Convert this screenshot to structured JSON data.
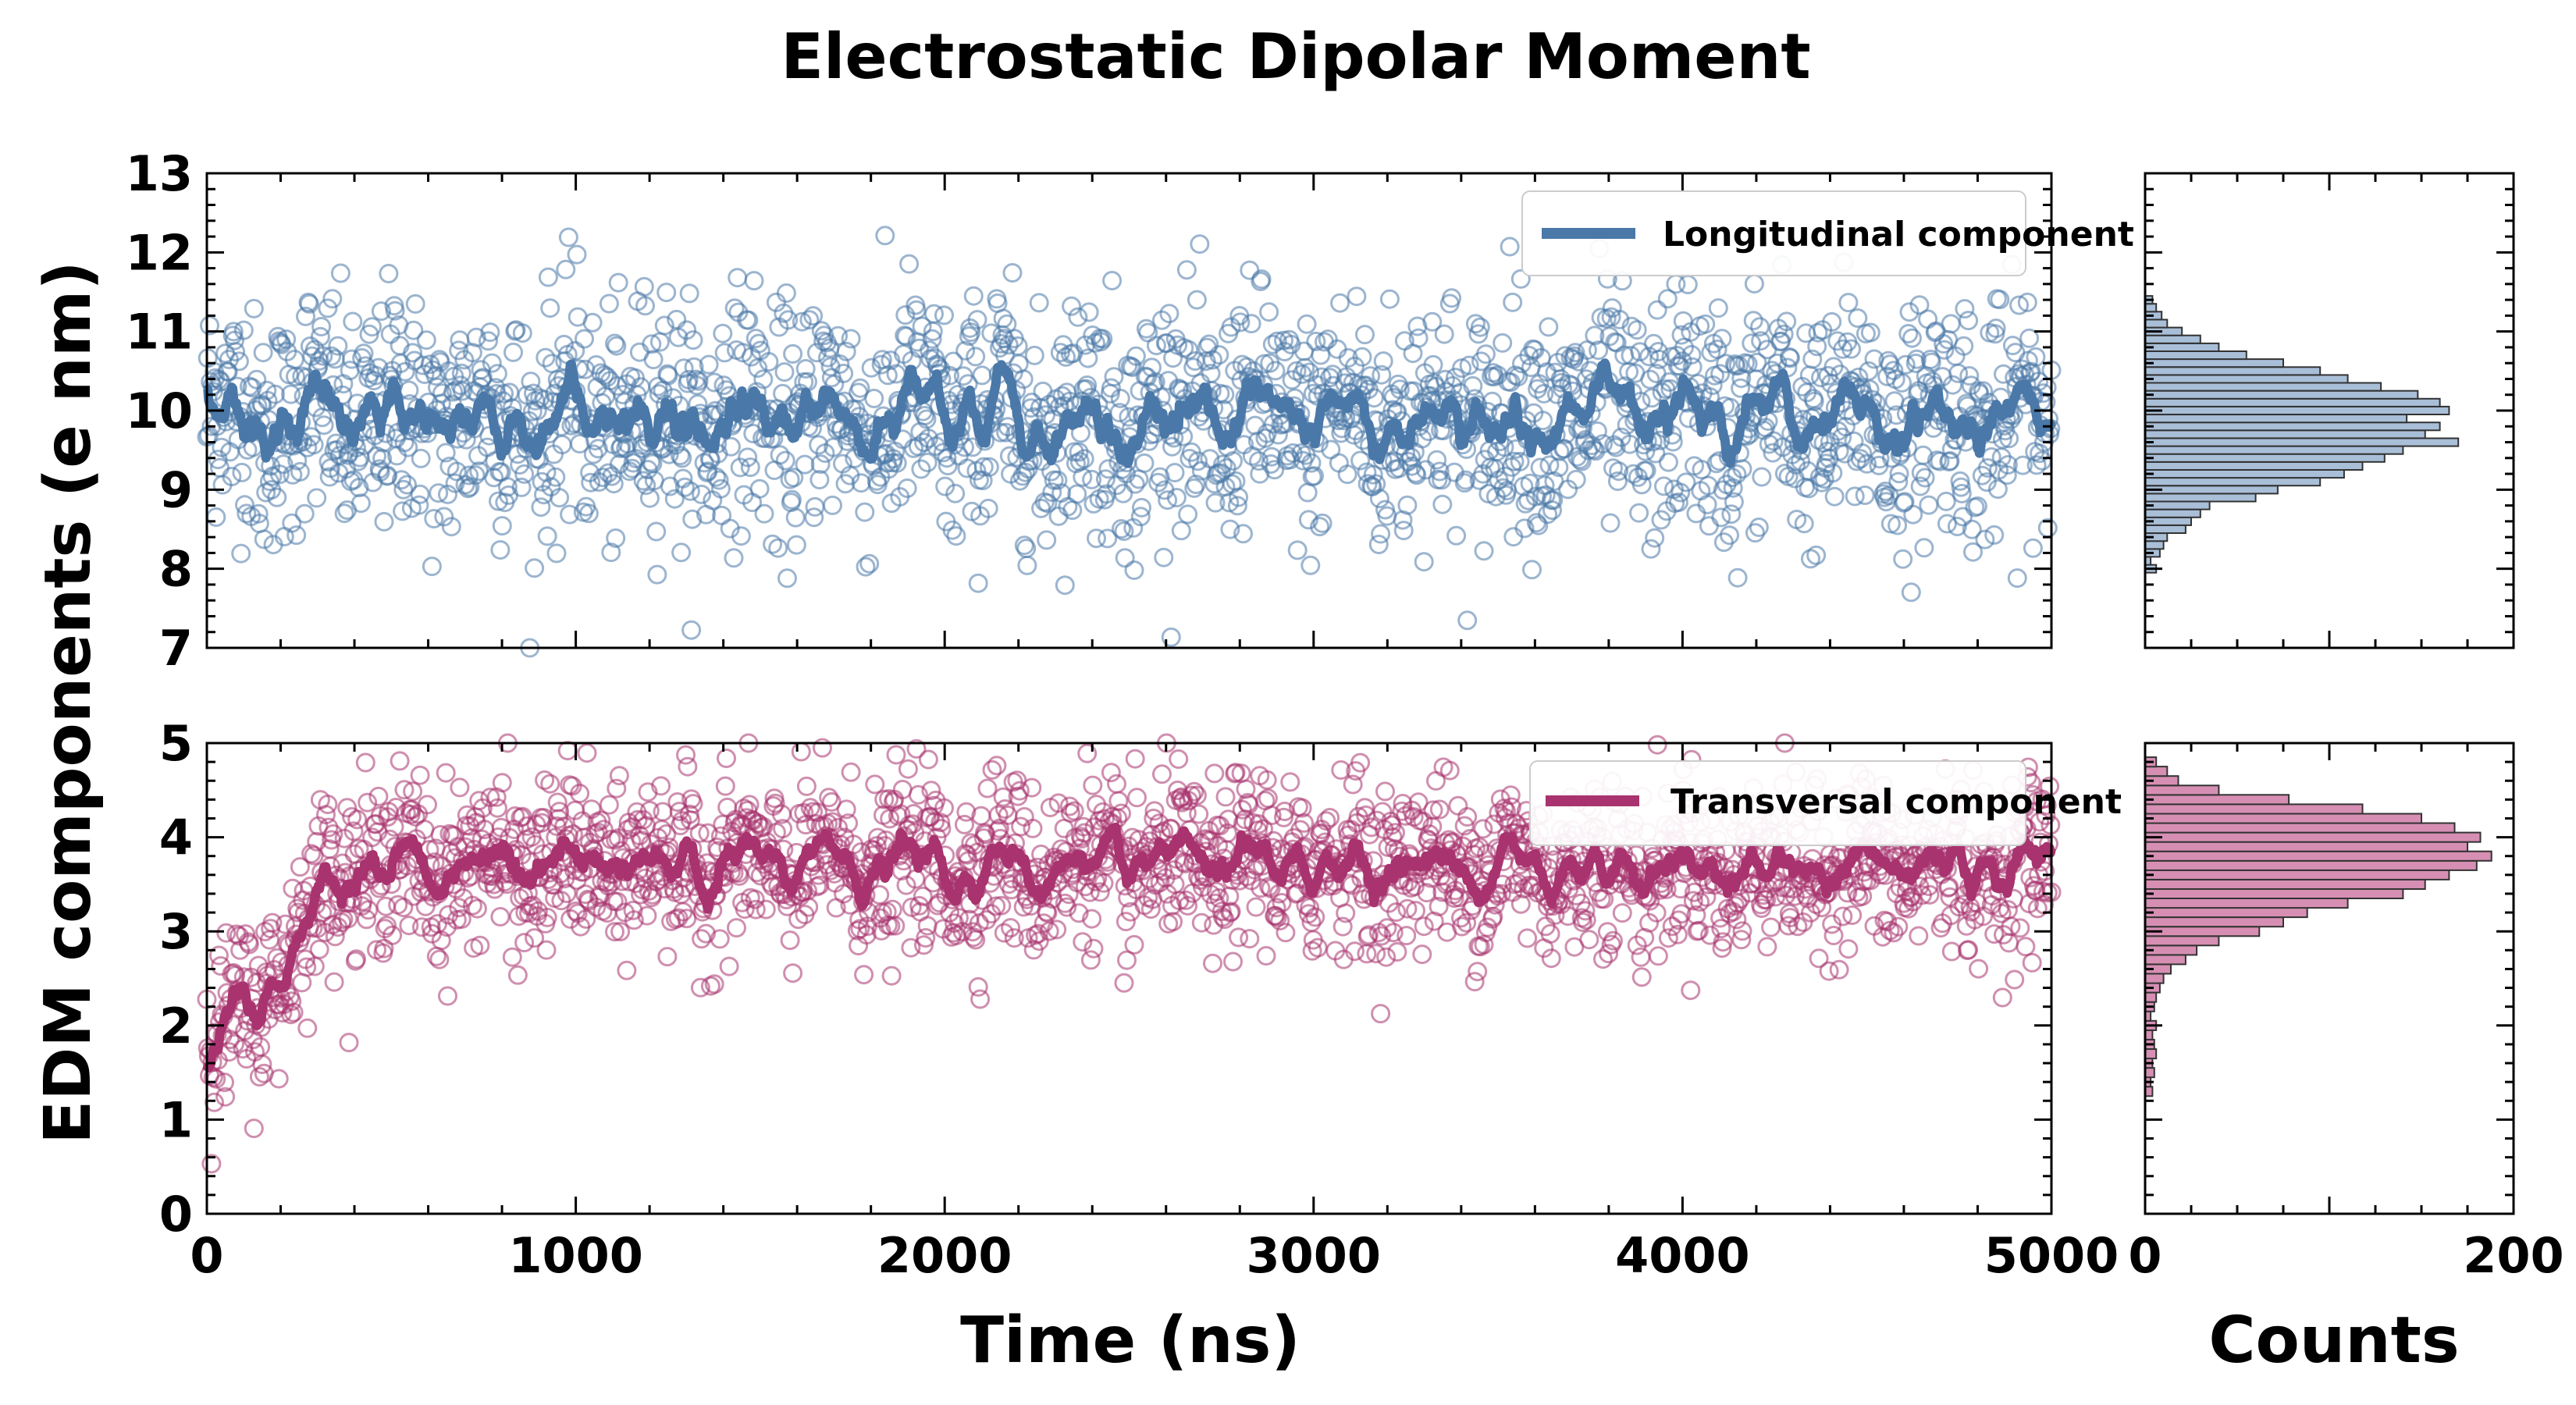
{
  "chart_data": {
    "type": "scatter",
    "title": "Electrostatic Dipolar Moment",
    "ylabel": "EDM components (e nm)",
    "xlabel": "Time (ns)",
    "hist_xlabel": "Counts",
    "panels": [
      {
        "name": "longitudinal",
        "legend": "Longitudinal component",
        "color": "#4a78a8",
        "xlim": [
          0,
          5000
        ],
        "ylim": [
          7,
          13
        ],
        "x_ticks": [
          0,
          1000,
          2000,
          3000,
          4000,
          5000
        ],
        "y_ticks": [
          7,
          8,
          9,
          10,
          11,
          12,
          13
        ],
        "n_points": 2000,
        "mean": 9.9,
        "std": 0.75,
        "smoothed_mean_approx": 9.9,
        "hist": {
          "xlim": [
            0,
            200
          ],
          "x_ticks": [
            0,
            200
          ],
          "bin_width": 0.1,
          "bins": [
            {
              "y": 8.0,
              "count": 6
            },
            {
              "y": 8.1,
              "count": 3
            },
            {
              "y": 8.2,
              "count": 8
            },
            {
              "y": 8.3,
              "count": 10
            },
            {
              "y": 8.4,
              "count": 12
            },
            {
              "y": 8.5,
              "count": 22
            },
            {
              "y": 8.6,
              "count": 25
            },
            {
              "y": 8.7,
              "count": 30
            },
            {
              "y": 8.8,
              "count": 35
            },
            {
              "y": 8.9,
              "count": 60
            },
            {
              "y": 9.0,
              "count": 72
            },
            {
              "y": 9.1,
              "count": 95
            },
            {
              "y": 9.2,
              "count": 108
            },
            {
              "y": 9.3,
              "count": 118
            },
            {
              "y": 9.4,
              "count": 130
            },
            {
              "y": 9.5,
              "count": 140
            },
            {
              "y": 9.6,
              "count": 170
            },
            {
              "y": 9.7,
              "count": 152
            },
            {
              "y": 9.8,
              "count": 160
            },
            {
              "y": 9.9,
              "count": 142
            },
            {
              "y": 10.0,
              "count": 165
            },
            {
              "y": 10.1,
              "count": 160
            },
            {
              "y": 10.2,
              "count": 148
            },
            {
              "y": 10.3,
              "count": 128
            },
            {
              "y": 10.4,
              "count": 110
            },
            {
              "y": 10.5,
              "count": 95
            },
            {
              "y": 10.6,
              "count": 75
            },
            {
              "y": 10.7,
              "count": 55
            },
            {
              "y": 10.8,
              "count": 40
            },
            {
              "y": 10.9,
              "count": 30
            },
            {
              "y": 11.0,
              "count": 20
            },
            {
              "y": 11.1,
              "count": 12
            },
            {
              "y": 11.2,
              "count": 9
            },
            {
              "y": 11.3,
              "count": 6
            },
            {
              "y": 11.4,
              "count": 4
            }
          ]
        }
      },
      {
        "name": "transversal",
        "legend": "Transversal component",
        "color": "#a8336e",
        "xlim": [
          0,
          5000
        ],
        "ylim": [
          0,
          5
        ],
        "x_ticks": [
          0,
          1000,
          2000,
          3000,
          4000,
          5000
        ],
        "y_ticks": [
          0,
          1,
          2,
          3,
          4,
          5
        ],
        "n_points": 2000,
        "mean": 3.7,
        "std": 0.45,
        "initial_rise": {
          "start_value": 1.8,
          "plateau_time": 350
        },
        "hist": {
          "xlim": [
            0,
            200
          ],
          "x_ticks": [
            0,
            200
          ],
          "bin_width": 0.1,
          "bins": [
            {
              "y": 1.3,
              "count": 4
            },
            {
              "y": 1.4,
              "count": 3
            },
            {
              "y": 1.5,
              "count": 5
            },
            {
              "y": 1.6,
              "count": 4
            },
            {
              "y": 1.7,
              "count": 6
            },
            {
              "y": 1.8,
              "count": 5
            },
            {
              "y": 1.9,
              "count": 4
            },
            {
              "y": 2.0,
              "count": 6
            },
            {
              "y": 2.1,
              "count": 3
            },
            {
              "y": 2.2,
              "count": 5
            },
            {
              "y": 2.3,
              "count": 6
            },
            {
              "y": 2.4,
              "count": 8
            },
            {
              "y": 2.5,
              "count": 10
            },
            {
              "y": 2.6,
              "count": 14
            },
            {
              "y": 2.7,
              "count": 22
            },
            {
              "y": 2.8,
              "count": 28
            },
            {
              "y": 2.9,
              "count": 40
            },
            {
              "y": 3.0,
              "count": 62
            },
            {
              "y": 3.1,
              "count": 75
            },
            {
              "y": 3.2,
              "count": 88
            },
            {
              "y": 3.3,
              "count": 110
            },
            {
              "y": 3.4,
              "count": 140
            },
            {
              "y": 3.5,
              "count": 152
            },
            {
              "y": 3.6,
              "count": 165
            },
            {
              "y": 3.7,
              "count": 180
            },
            {
              "y": 3.8,
              "count": 188
            },
            {
              "y": 3.9,
              "count": 175
            },
            {
              "y": 4.0,
              "count": 182
            },
            {
              "y": 4.1,
              "count": 168
            },
            {
              "y": 4.2,
              "count": 150
            },
            {
              "y": 4.3,
              "count": 118
            },
            {
              "y": 4.4,
              "count": 78
            },
            {
              "y": 4.5,
              "count": 40
            },
            {
              "y": 4.6,
              "count": 18
            },
            {
              "y": 4.7,
              "count": 12
            },
            {
              "y": 4.8,
              "count": 6
            }
          ]
        }
      }
    ]
  }
}
